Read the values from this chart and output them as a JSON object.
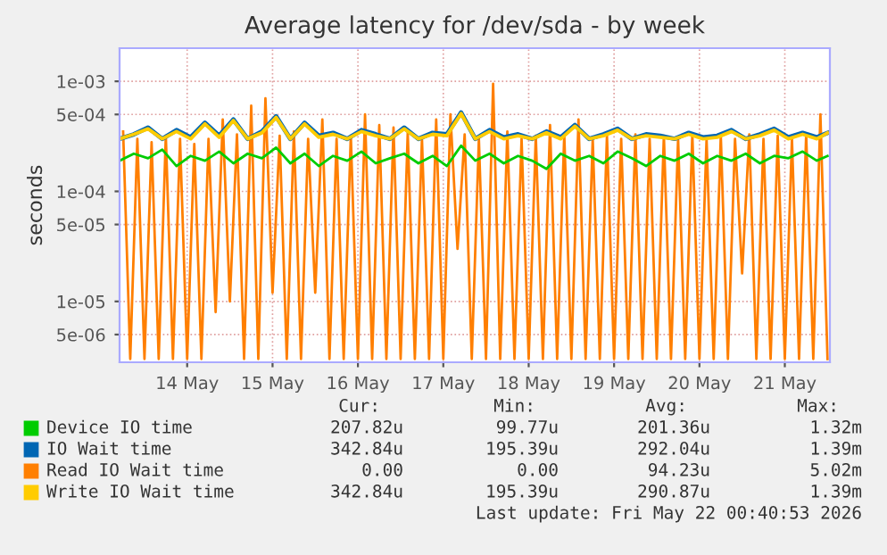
{
  "chart_data": {
    "type": "line",
    "title": "Average latency for /dev/sda - by week",
    "ylabel": "seconds",
    "log": "y",
    "xlim": [
      "2026-05-13T17:00",
      "2026-05-22T00:40"
    ],
    "ylim": [
      2.8e-06,
      0.002
    ],
    "xticks": [
      {
        "value": "2026-05-14T12:00",
        "label": "14 May"
      },
      {
        "value": "2026-05-15T12:00",
        "label": "15 May"
      },
      {
        "value": "2026-05-16T12:00",
        "label": "16 May"
      },
      {
        "value": "2026-05-17T12:00",
        "label": "17 May"
      },
      {
        "value": "2026-05-18T12:00",
        "label": "18 May"
      },
      {
        "value": "2026-05-19T12:00",
        "label": "19 May"
      },
      {
        "value": "2026-05-20T12:00",
        "label": "20 May"
      },
      {
        "value": "2026-05-21T12:00",
        "label": "21 May"
      }
    ],
    "yticks": [
      {
        "value": 5e-06,
        "label": "5e-06"
      },
      {
        "value": 1e-05,
        "label": "1e-05"
      },
      {
        "value": 5e-05,
        "label": "5e-05"
      },
      {
        "value": 0.0001,
        "label": "1e-04"
      },
      {
        "value": 0.0005,
        "label": "5e-04"
      },
      {
        "value": 0.001,
        "label": "1e-03"
      }
    ],
    "grid": true,
    "legend": "bottom left",
    "line_style": "solid",
    "marker": "none",
    "series": [
      {
        "name": "Read IO Wait time",
        "color": "#ff7f00",
        "x": [
          "2026-05-13T18:00",
          "2026-05-13T20:00",
          "2026-05-13T22:00",
          "2026-05-14T00:00",
          "2026-05-14T02:00",
          "2026-05-14T04:00",
          "2026-05-14T06:00",
          "2026-05-14T08:00",
          "2026-05-14T10:00",
          "2026-05-14T12:00",
          "2026-05-14T14:00",
          "2026-05-14T16:00",
          "2026-05-14T18:00",
          "2026-05-14T20:00",
          "2026-05-14T22:00",
          "2026-05-15T00:00",
          "2026-05-15T02:00",
          "2026-05-15T04:00",
          "2026-05-15T06:00",
          "2026-05-15T08:00",
          "2026-05-15T10:00",
          "2026-05-15T12:00",
          "2026-05-15T14:00",
          "2026-05-15T16:00",
          "2026-05-15T18:00",
          "2026-05-15T20:00",
          "2026-05-15T22:00",
          "2026-05-16T00:00",
          "2026-05-16T02:00",
          "2026-05-16T04:00",
          "2026-05-16T06:00",
          "2026-05-16T08:00",
          "2026-05-16T10:00",
          "2026-05-16T12:00",
          "2026-05-16T14:00",
          "2026-05-16T16:00",
          "2026-05-16T18:00",
          "2026-05-16T20:00",
          "2026-05-16T22:00",
          "2026-05-17T00:00",
          "2026-05-17T02:00",
          "2026-05-17T04:00",
          "2026-05-17T06:00",
          "2026-05-17T08:00",
          "2026-05-17T10:00",
          "2026-05-17T12:00",
          "2026-05-17T14:00",
          "2026-05-17T16:00",
          "2026-05-17T18:00",
          "2026-05-17T20:00",
          "2026-05-17T22:00",
          "2026-05-18T00:00",
          "2026-05-18T02:00",
          "2026-05-18T04:00",
          "2026-05-18T06:00",
          "2026-05-18T08:00",
          "2026-05-18T10:00",
          "2026-05-18T12:00",
          "2026-05-18T14:00",
          "2026-05-18T16:00",
          "2026-05-18T18:00",
          "2026-05-18T20:00",
          "2026-05-18T22:00",
          "2026-05-19T00:00",
          "2026-05-19T02:00",
          "2026-05-19T04:00",
          "2026-05-19T06:00",
          "2026-05-19T08:00",
          "2026-05-19T10:00",
          "2026-05-19T12:00",
          "2026-05-19T14:00",
          "2026-05-19T16:00",
          "2026-05-19T18:00",
          "2026-05-19T20:00",
          "2026-05-19T22:00",
          "2026-05-20T00:00",
          "2026-05-20T02:00",
          "2026-05-20T04:00",
          "2026-05-20T06:00",
          "2026-05-20T08:00",
          "2026-05-20T10:00",
          "2026-05-20T12:00",
          "2026-05-20T14:00",
          "2026-05-20T16:00",
          "2026-05-20T18:00",
          "2026-05-20T20:00",
          "2026-05-20T22:00",
          "2026-05-21T00:00",
          "2026-05-21T02:00",
          "2026-05-21T04:00",
          "2026-05-21T06:00",
          "2026-05-21T08:00",
          "2026-05-21T10:00",
          "2026-05-21T12:00",
          "2026-05-21T14:00",
          "2026-05-21T16:00",
          "2026-05-21T18:00",
          "2026-05-21T20:00",
          "2026-05-21T22:00",
          "2026-05-22T00:00"
        ],
        "values": [
          0.00035,
          3e-06,
          0.0003,
          3e-06,
          0.00028,
          3e-06,
          0.00032,
          3e-06,
          0.0003,
          3e-06,
          0.00027,
          3e-06,
          0.0003,
          8e-06,
          0.00045,
          1e-05,
          0.00033,
          3e-06,
          0.0006,
          3e-06,
          0.0007,
          1.2e-05,
          0.00032,
          3e-06,
          0.00035,
          3e-06,
          0.0003,
          1.2e-05,
          0.00045,
          3e-06,
          0.0003,
          3e-06,
          0.00032,
          3e-06,
          0.0005,
          3e-06,
          0.0004,
          3e-06,
          0.00038,
          3e-06,
          0.00034,
          3e-06,
          0.0003,
          3e-06,
          0.00045,
          3e-06,
          0.0005,
          3e-05,
          0.00033,
          3e-06,
          0.0003,
          3e-06,
          0.00095,
          3e-06,
          0.00035,
          3e-06,
          0.0003,
          3e-06,
          0.00032,
          3e-06,
          0.0004,
          3e-06,
          0.00033,
          3e-06,
          0.00045,
          3e-06,
          0.0003,
          3e-06,
          0.00032,
          3e-06,
          0.0003,
          3e-06,
          0.00033,
          3e-06,
          0.0003,
          3e-06,
          0.00032,
          3e-06,
          0.0003,
          3e-06,
          0.00033,
          3e-06,
          0.0003,
          3e-06,
          0.00032,
          3e-06,
          0.0003,
          1.8e-05,
          0.00033,
          3e-06,
          0.0003,
          3e-06,
          0.00032,
          3e-06,
          0.0003,
          3e-06,
          0.00033,
          3e-06,
          0.0005,
          3e-06
        ]
      },
      {
        "name": "IO Wait time",
        "color": "#0066b3",
        "x": [
          "2026-05-13T17:00",
          "2026-05-13T21:00",
          "2026-05-14T01:00",
          "2026-05-14T05:00",
          "2026-05-14T09:00",
          "2026-05-14T13:00",
          "2026-05-14T17:00",
          "2026-05-14T21:00",
          "2026-05-15T01:00",
          "2026-05-15T05:00",
          "2026-05-15T09:00",
          "2026-05-15T13:00",
          "2026-05-15T17:00",
          "2026-05-15T21:00",
          "2026-05-16T01:00",
          "2026-05-16T05:00",
          "2026-05-16T09:00",
          "2026-05-16T13:00",
          "2026-05-16T17:00",
          "2026-05-16T21:00",
          "2026-05-17T01:00",
          "2026-05-17T05:00",
          "2026-05-17T09:00",
          "2026-05-17T13:00",
          "2026-05-17T17:00",
          "2026-05-17T21:00",
          "2026-05-18T01:00",
          "2026-05-18T05:00",
          "2026-05-18T09:00",
          "2026-05-18T13:00",
          "2026-05-18T17:00",
          "2026-05-18T21:00",
          "2026-05-19T01:00",
          "2026-05-19T05:00",
          "2026-05-19T09:00",
          "2026-05-19T13:00",
          "2026-05-19T17:00",
          "2026-05-19T21:00",
          "2026-05-20T01:00",
          "2026-05-20T05:00",
          "2026-05-20T09:00",
          "2026-05-20T13:00",
          "2026-05-20T17:00",
          "2026-05-20T21:00",
          "2026-05-21T01:00",
          "2026-05-21T05:00",
          "2026-05-21T09:00",
          "2026-05-21T13:00",
          "2026-05-21T17:00",
          "2026-05-21T21:00",
          "2026-05-22T00:00"
        ],
        "values": [
          0.0003,
          0.00033,
          0.00038,
          0.0003,
          0.00036,
          0.00031,
          0.00042,
          0.00032,
          0.00045,
          0.0003,
          0.00035,
          0.00048,
          0.0003,
          0.00042,
          0.00032,
          0.00034,
          0.0003,
          0.00036,
          0.00033,
          0.0003,
          0.00038,
          0.0003,
          0.00034,
          0.00033,
          0.00052,
          0.0003,
          0.00036,
          0.00031,
          0.00033,
          0.0003,
          0.00035,
          0.00031,
          0.0004,
          0.0003,
          0.00033,
          0.00037,
          0.0003,
          0.00033,
          0.00032,
          0.0003,
          0.00034,
          0.00031,
          0.00032,
          0.00036,
          0.0003,
          0.00033,
          0.00037,
          0.00031,
          0.00034,
          0.00031,
          0.00034
        ]
      },
      {
        "name": "Write IO Wait time",
        "color": "#ffcc00",
        "x": [
          "2026-05-13T17:00",
          "2026-05-13T21:00",
          "2026-05-14T01:00",
          "2026-05-14T05:00",
          "2026-05-14T09:00",
          "2026-05-14T13:00",
          "2026-05-14T17:00",
          "2026-05-14T21:00",
          "2026-05-15T01:00",
          "2026-05-15T05:00",
          "2026-05-15T09:00",
          "2026-05-15T13:00",
          "2026-05-15T17:00",
          "2026-05-15T21:00",
          "2026-05-16T01:00",
          "2026-05-16T05:00",
          "2026-05-16T09:00",
          "2026-05-16T13:00",
          "2026-05-16T17:00",
          "2026-05-16T21:00",
          "2026-05-17T01:00",
          "2026-05-17T05:00",
          "2026-05-17T09:00",
          "2026-05-17T13:00",
          "2026-05-17T17:00",
          "2026-05-17T21:00",
          "2026-05-18T01:00",
          "2026-05-18T05:00",
          "2026-05-18T09:00",
          "2026-05-18T13:00",
          "2026-05-18T17:00",
          "2026-05-18T21:00",
          "2026-05-19T01:00",
          "2026-05-19T05:00",
          "2026-05-19T09:00",
          "2026-05-19T13:00",
          "2026-05-19T17:00",
          "2026-05-19T21:00",
          "2026-05-20T01:00",
          "2026-05-20T05:00",
          "2026-05-20T09:00",
          "2026-05-20T13:00",
          "2026-05-20T17:00",
          "2026-05-20T21:00",
          "2026-05-21T01:00",
          "2026-05-21T05:00",
          "2026-05-21T09:00",
          "2026-05-21T13:00",
          "2026-05-21T17:00",
          "2026-05-21T21:00",
          "2026-05-22T00:00"
        ],
        "values": [
          0.0003,
          0.00033,
          0.00037,
          0.0003,
          0.00035,
          0.0003,
          0.00041,
          0.00031,
          0.00044,
          0.0003,
          0.00034,
          0.00047,
          0.0003,
          0.00041,
          0.00031,
          0.00033,
          0.0003,
          0.00035,
          0.00032,
          0.0003,
          0.00037,
          0.0003,
          0.00033,
          0.00032,
          0.00051,
          0.0003,
          0.00035,
          0.0003,
          0.00032,
          0.0003,
          0.00034,
          0.0003,
          0.00039,
          0.0003,
          0.00032,
          0.00036,
          0.0003,
          0.00032,
          0.00031,
          0.0003,
          0.00033,
          0.0003,
          0.00031,
          0.00035,
          0.0003,
          0.00032,
          0.00036,
          0.0003,
          0.00033,
          0.0003,
          0.00034
        ]
      },
      {
        "name": "Device IO time",
        "color": "#00cc00",
        "x": [
          "2026-05-13T17:00",
          "2026-05-13T21:00",
          "2026-05-14T01:00",
          "2026-05-14T05:00",
          "2026-05-14T09:00",
          "2026-05-14T13:00",
          "2026-05-14T17:00",
          "2026-05-14T21:00",
          "2026-05-15T01:00",
          "2026-05-15T05:00",
          "2026-05-15T09:00",
          "2026-05-15T13:00",
          "2026-05-15T17:00",
          "2026-05-15T21:00",
          "2026-05-16T01:00",
          "2026-05-16T05:00",
          "2026-05-16T09:00",
          "2026-05-16T13:00",
          "2026-05-16T17:00",
          "2026-05-16T21:00",
          "2026-05-17T01:00",
          "2026-05-17T05:00",
          "2026-05-17T09:00",
          "2026-05-17T13:00",
          "2026-05-17T17:00",
          "2026-05-17T21:00",
          "2026-05-18T01:00",
          "2026-05-18T05:00",
          "2026-05-18T09:00",
          "2026-05-18T13:00",
          "2026-05-18T17:00",
          "2026-05-18T21:00",
          "2026-05-19T01:00",
          "2026-05-19T05:00",
          "2026-05-19T09:00",
          "2026-05-19T13:00",
          "2026-05-19T17:00",
          "2026-05-19T21:00",
          "2026-05-20T01:00",
          "2026-05-20T05:00",
          "2026-05-20T09:00",
          "2026-05-20T13:00",
          "2026-05-20T17:00",
          "2026-05-20T21:00",
          "2026-05-21T01:00",
          "2026-05-21T05:00",
          "2026-05-21T09:00",
          "2026-05-21T13:00",
          "2026-05-21T17:00",
          "2026-05-21T21:00",
          "2026-05-22T00:00"
        ],
        "values": [
          0.00019,
          0.00022,
          0.0002,
          0.00024,
          0.00017,
          0.00021,
          0.00019,
          0.00023,
          0.00018,
          0.00022,
          0.0002,
          0.00025,
          0.00018,
          0.00022,
          0.00017,
          0.00021,
          0.00019,
          0.00023,
          0.00018,
          0.0002,
          0.00022,
          0.00018,
          0.00021,
          0.00017,
          0.00026,
          0.00019,
          0.00022,
          0.00018,
          0.00021,
          0.00019,
          0.00016,
          0.00022,
          0.00019,
          0.00021,
          0.00018,
          0.00023,
          0.0002,
          0.00017,
          0.00021,
          0.00019,
          0.00022,
          0.00018,
          0.00021,
          0.00019,
          0.00022,
          0.00018,
          0.00021,
          0.0002,
          0.00023,
          0.00019,
          0.00021
        ]
      }
    ],
    "annotations": [
      "Cur:",
      "Min:",
      "Avg:",
      "Max:",
      "207.82u",
      "99.77u",
      "201.36u",
      "1.32m",
      "342.84u",
      "195.39u",
      "292.04u",
      "1.39m",
      "0.00",
      "0.00",
      "94.23u",
      "5.02m",
      "342.84u",
      "195.39u",
      "290.87u",
      "1.39m",
      "Last update: Fri May 22 00:40:53 2026"
    ]
  }
}
